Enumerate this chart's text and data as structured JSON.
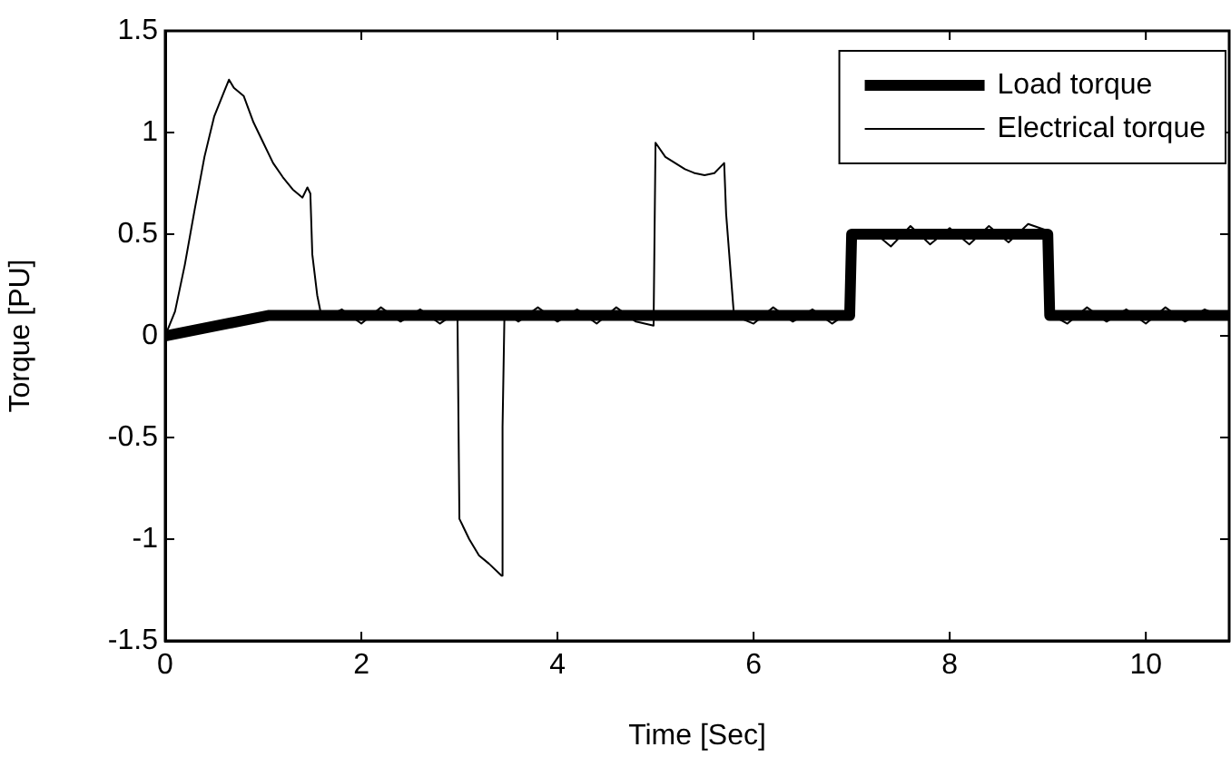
{
  "chart_data": {
    "type": "line",
    "xlabel": "Time [Sec]",
    "ylabel": "Torque [PU]",
    "xlim": [
      0,
      10.85
    ],
    "xticks": [
      0,
      2,
      4,
      6,
      8,
      10
    ],
    "ylim": [
      -1.5,
      1.5
    ],
    "yticks": [
      -1.5,
      -1,
      -0.5,
      0,
      0.5,
      1,
      1.5
    ],
    "legend": "top right",
    "grid": false,
    "marker": "none",
    "line_style": "solid",
    "series": [
      {
        "name": "Load torque",
        "color": "#000000",
        "x": [
          0,
          1.05,
          6.98,
          7.0,
          9.0,
          9.02,
          10.85
        ],
        "values": [
          0,
          0.1,
          0.1,
          0.5,
          0.5,
          0.1,
          0.1
        ]
      },
      {
        "name": "Electrical torque",
        "color": "#000000",
        "x": [
          0,
          0.1,
          0.2,
          0.3,
          0.4,
          0.5,
          0.6,
          0.65,
          0.7,
          0.8,
          0.9,
          1.0,
          1.1,
          1.2,
          1.3,
          1.4,
          1.45,
          1.48,
          1.5,
          1.55,
          1.6,
          1.8,
          2.0,
          2.2,
          2.4,
          2.6,
          2.8,
          2.98,
          3.0,
          3.1,
          3.2,
          3.3,
          3.43,
          3.44,
          3.46,
          3.6,
          3.8,
          4.0,
          4.2,
          4.4,
          4.6,
          4.8,
          4.98,
          5.0,
          5.1,
          5.2,
          5.3,
          5.4,
          5.5,
          5.6,
          5.7,
          5.72,
          5.8,
          6.0,
          6.2,
          6.4,
          6.6,
          6.8,
          6.98,
          7.02,
          7.2,
          7.4,
          7.6,
          7.8,
          8.0,
          8.2,
          8.4,
          8.6,
          8.8,
          8.98,
          9.05,
          9.2,
          9.4,
          9.6,
          9.8,
          10.0,
          10.2,
          10.4,
          10.6,
          10.85
        ],
        "values": [
          0,
          0.12,
          0.35,
          0.62,
          0.88,
          1.08,
          1.2,
          1.26,
          1.22,
          1.18,
          1.05,
          0.95,
          0.85,
          0.78,
          0.72,
          0.68,
          0.73,
          0.7,
          0.4,
          0.2,
          0.08,
          0.13,
          0.06,
          0.14,
          0.07,
          0.13,
          0.06,
          0.12,
          -0.9,
          -1.0,
          -1.08,
          -1.12,
          -1.18,
          -0.45,
          0.12,
          0.07,
          0.14,
          0.07,
          0.13,
          0.06,
          0.14,
          0.07,
          0.05,
          0.95,
          0.88,
          0.85,
          0.82,
          0.8,
          0.79,
          0.8,
          0.85,
          0.6,
          0.1,
          0.06,
          0.14,
          0.07,
          0.13,
          0.06,
          0.12,
          0.48,
          0.52,
          0.44,
          0.54,
          0.45,
          0.53,
          0.45,
          0.54,
          0.46,
          0.55,
          0.52,
          0.1,
          0.06,
          0.14,
          0.07,
          0.13,
          0.06,
          0.14,
          0.07,
          0.13,
          0.08
        ]
      }
    ]
  }
}
